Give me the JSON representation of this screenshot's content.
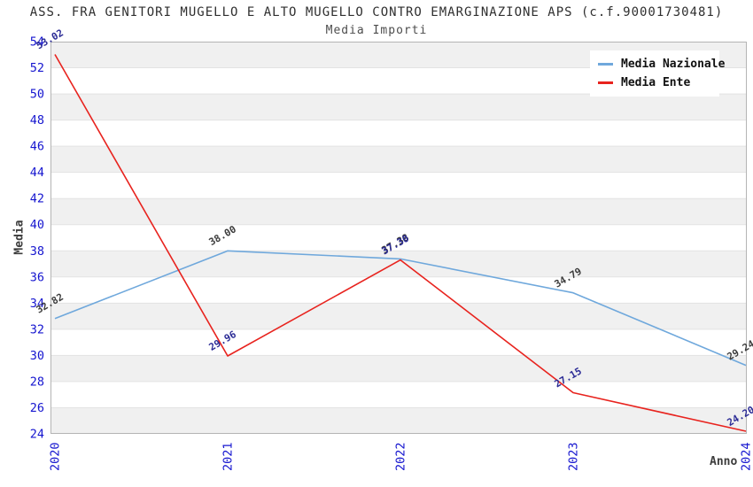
{
  "title": "ASS. FRA GENITORI MUGELLO E ALTO MUGELLO CONTRO EMARGINAZIONE APS (c.f.90001730481)",
  "subtitle": "Media Importi",
  "chart_data": {
    "type": "line",
    "x": [
      "2020",
      "2021",
      "2022",
      "2023",
      "2024"
    ],
    "series": [
      {
        "name": "Media Nazionale",
        "color": "#6fa8dc",
        "label_color": "#3c3c3c",
        "values": [
          32.82,
          38.0,
          37.38,
          34.79,
          29.24
        ]
      },
      {
        "name": "Media Ente",
        "color": "#e8231e",
        "label_color": "#2c2c96",
        "values": [
          53.02,
          29.96,
          37.3,
          27.15,
          24.2
        ]
      }
    ],
    "xlabel": "Anno",
    "ylabel": "Media",
    "ylim": [
      24,
      54
    ],
    "ytick_step": 2,
    "yticks": [
      24,
      26,
      28,
      30,
      32,
      34,
      36,
      38,
      40,
      42,
      44,
      46,
      48,
      50,
      52,
      54
    ],
    "legend_position": "top-right",
    "grid": "horizontal-bands",
    "band_color": "#f0f0f0",
    "gridline_color": "#e2e2e2",
    "border_color": "#b4b4b4",
    "tick_label_color": "#1515cf"
  }
}
